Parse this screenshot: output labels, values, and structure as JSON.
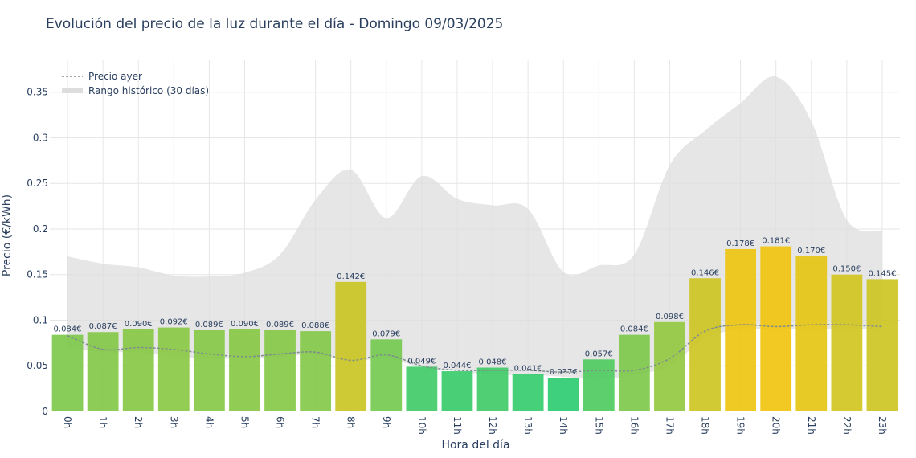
{
  "chart_data": {
    "type": "bar",
    "title": "Evolución del precio de la luz durante el día - Domingo 09/03/2025",
    "xlabel": "Hora del día",
    "ylabel": "Precio (€/kWh)",
    "ylim": [
      0,
      0.385
    ],
    "yticks": [
      "0",
      "0.05",
      "0.1",
      "0.15",
      "0.2",
      "0.25",
      "0.3",
      "0.35"
    ],
    "ytick_values": [
      0,
      0.05,
      0.1,
      0.15,
      0.2,
      0.25,
      0.3,
      0.35
    ],
    "categories": [
      "0h",
      "1h",
      "2h",
      "3h",
      "4h",
      "5h",
      "6h",
      "7h",
      "8h",
      "9h",
      "10h",
      "11h",
      "12h",
      "13h",
      "14h",
      "15h",
      "16h",
      "17h",
      "18h",
      "19h",
      "20h",
      "21h",
      "22h",
      "23h"
    ],
    "values": [
      0.084,
      0.087,
      0.09,
      0.092,
      0.089,
      0.09,
      0.089,
      0.088,
      0.142,
      0.079,
      0.049,
      0.044,
      0.048,
      0.041,
      0.037,
      0.057,
      0.084,
      0.098,
      0.146,
      0.178,
      0.181,
      0.17,
      0.15,
      0.145
    ],
    "data_labels": [
      "0.084€",
      "0.087€",
      "0.090€",
      "0.092€",
      "0.089€",
      "0.090€",
      "0.089€",
      "0.088€",
      "0.142€",
      "0.079€",
      "0.049€",
      "0.044€",
      "0.048€",
      "0.041€",
      "0.037€",
      "0.057€",
      "0.084€",
      "0.098€",
      "0.146€",
      "0.178€",
      "0.181€",
      "0.170€",
      "0.150€",
      "0.145€"
    ],
    "yesterday": {
      "name": "Precio ayer",
      "values": [
        0.083,
        0.068,
        0.07,
        0.068,
        0.063,
        0.06,
        0.063,
        0.065,
        0.056,
        0.062,
        0.05,
        0.045,
        0.045,
        0.045,
        0.043,
        0.045,
        0.045,
        0.058,
        0.088,
        0.095,
        0.093,
        0.095,
        0.095,
        0.093
      ]
    },
    "historical_range": {
      "name": "Rango histórico (30 días)",
      "low": [
        0.07,
        0.065,
        0.065,
        0.06,
        0.058,
        0.058,
        0.06,
        0.062,
        0.055,
        0.058,
        0.048,
        0.044,
        0.04,
        0.04,
        0.038,
        0.035,
        0.04,
        0.05,
        0.08,
        0.09,
        0.09,
        0.09,
        0.09,
        0.09
      ],
      "high": [
        0.17,
        0.162,
        0.158,
        0.149,
        0.148,
        0.152,
        0.172,
        0.232,
        0.265,
        0.212,
        0.258,
        0.233,
        0.226,
        0.222,
        0.153,
        0.16,
        0.172,
        0.27,
        0.308,
        0.338,
        0.367,
        0.318,
        0.21,
        0.198
      ]
    },
    "legend_position": "top-left",
    "grid": true,
    "colors": {
      "low": "#2ecc71",
      "mid": "#a8c838",
      "high": "#f1c40f",
      "range_fill": "#dddddd",
      "yesterday_line": "#7f8c8d",
      "grid": "#e6e6e6",
      "text": "#2a3f5f"
    }
  }
}
